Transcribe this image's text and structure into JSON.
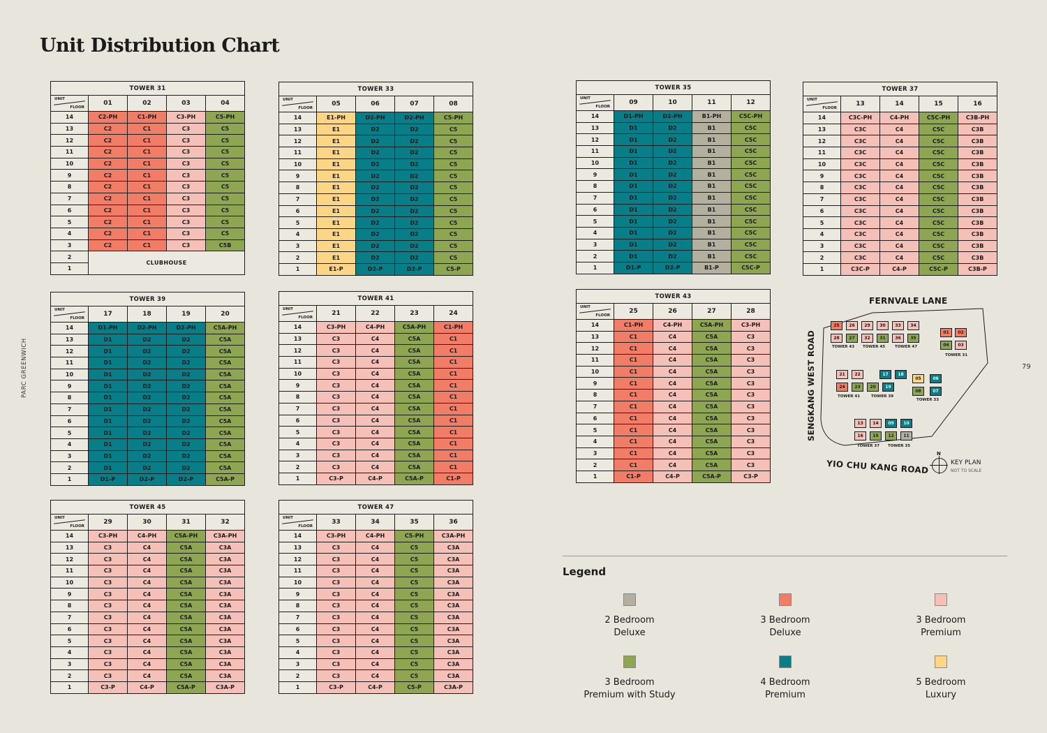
{
  "page": {
    "title": "Unit Distribution Chart",
    "side_label": "PARC GREENWICH",
    "page_number": "79"
  },
  "colors": {
    "gray": "#b3b09f",
    "coral": "#f27d67",
    "pink": "#f5c0b8",
    "green": "#8ea652",
    "teal": "#077e88",
    "yellow": "#fcd685"
  },
  "common": {
    "unit_label": "UNIT",
    "floor_label": "FLOOR",
    "clubhouse": "CLUBHOUSE"
  },
  "towers": [
    {
      "id": "t31",
      "name": "TOWER 31",
      "units": [
        "01",
        "02",
        "03",
        "04"
      ],
      "colors": [
        "coral",
        "coral",
        "pink",
        "green"
      ],
      "floors": [
        [
          "C2-PH",
          "C1-PH",
          "C3-PH",
          "C5-PH"
        ],
        [
          "C2",
          "C1",
          "C3",
          "C5"
        ],
        [
          "C2",
          "C1",
          "C3",
          "C5"
        ],
        [
          "C2",
          "C1",
          "C3",
          "C5"
        ],
        [
          "C2",
          "C1",
          "C3",
          "C5"
        ],
        [
          "C2",
          "C1",
          "C3",
          "C5"
        ],
        [
          "C2",
          "C1",
          "C3",
          "C5"
        ],
        [
          "C2",
          "C1",
          "C3",
          "C5"
        ],
        [
          "C2",
          "C1",
          "C3",
          "C5"
        ],
        [
          "C2",
          "C1",
          "C3",
          "C5"
        ],
        [
          "C2",
          "C1",
          "C3",
          "C5"
        ],
        [
          "C2",
          "C1",
          "C3",
          "C5B"
        ]
      ],
      "clubhouse": true
    },
    {
      "id": "t33",
      "name": "TOWER 33",
      "units": [
        "05",
        "06",
        "07",
        "08"
      ],
      "colors": [
        "yellow",
        "teal",
        "teal",
        "green"
      ],
      "floors": [
        [
          "E1-PH",
          "D2-PH",
          "D2-PH",
          "C5-PH"
        ],
        [
          "E1",
          "D2",
          "D2",
          "C5"
        ],
        [
          "E1",
          "D2",
          "D2",
          "C5"
        ],
        [
          "E1",
          "D2",
          "D2",
          "C5"
        ],
        [
          "E1",
          "D2",
          "D2",
          "C5"
        ],
        [
          "E1",
          "D2",
          "D2",
          "C5"
        ],
        [
          "E1",
          "D2",
          "D2",
          "C5"
        ],
        [
          "E1",
          "D2",
          "D2",
          "C5"
        ],
        [
          "E1",
          "D2",
          "D2",
          "C5"
        ],
        [
          "E1",
          "D2",
          "D2",
          "C5"
        ],
        [
          "E1",
          "D2",
          "D2",
          "C5"
        ],
        [
          "E1",
          "D2",
          "D2",
          "C5"
        ],
        [
          "E1",
          "D2",
          "D2",
          "C5"
        ],
        [
          "E1-P",
          "D2-P",
          "D2-P",
          "C5-P"
        ]
      ]
    },
    {
      "id": "t35",
      "name": "TOWER 35",
      "units": [
        "09",
        "10",
        "11",
        "12"
      ],
      "colors": [
        "teal",
        "teal",
        "gray",
        "green"
      ],
      "floors": [
        [
          "D1-PH",
          "D2-PH",
          "B1-PH",
          "C5C-PH"
        ],
        [
          "D1",
          "D2",
          "B1",
          "C5C"
        ],
        [
          "D1",
          "D2",
          "B1",
          "C5C"
        ],
        [
          "D1",
          "D2",
          "B1",
          "C5C"
        ],
        [
          "D1",
          "D2",
          "B1",
          "C5C"
        ],
        [
          "D1",
          "D2",
          "B1",
          "C5C"
        ],
        [
          "D1",
          "D2",
          "B1",
          "C5C"
        ],
        [
          "D1",
          "D2",
          "B1",
          "C5C"
        ],
        [
          "D1",
          "D2",
          "B1",
          "C5C"
        ],
        [
          "D1",
          "D2",
          "B1",
          "C5C"
        ],
        [
          "D1",
          "D2",
          "B1",
          "C5C"
        ],
        [
          "D1",
          "D2",
          "B1",
          "C5C"
        ],
        [
          "D1",
          "D2",
          "B1",
          "C5C"
        ],
        [
          "D1-P",
          "D2-P",
          "B1-P",
          "C5C-P"
        ]
      ]
    },
    {
      "id": "t37",
      "name": "TOWER 37",
      "units": [
        "13",
        "14",
        "15",
        "16"
      ],
      "colors": [
        "pink",
        "pink",
        "green",
        "pink"
      ],
      "floors": [
        [
          "C3C-PH",
          "C4-PH",
          "C5C-PH",
          "C3B-PH"
        ],
        [
          "C3C",
          "C4",
          "C5C",
          "C3B"
        ],
        [
          "C3C",
          "C4",
          "C5C",
          "C3B"
        ],
        [
          "C3C",
          "C4",
          "C5C",
          "C3B"
        ],
        [
          "C3C",
          "C4",
          "C5C",
          "C3B"
        ],
        [
          "C3C",
          "C4",
          "C5C",
          "C3B"
        ],
        [
          "C3C",
          "C4",
          "C5C",
          "C3B"
        ],
        [
          "C3C",
          "C4",
          "C5C",
          "C3B"
        ],
        [
          "C3C",
          "C4",
          "C5C",
          "C3B"
        ],
        [
          "C3C",
          "C4",
          "C5C",
          "C3B"
        ],
        [
          "C3C",
          "C4",
          "C5C",
          "C3B"
        ],
        [
          "C3C",
          "C4",
          "C5C",
          "C3B"
        ],
        [
          "C3C",
          "C4",
          "C5C",
          "C3B"
        ],
        [
          "C3C-P",
          "C4-P",
          "C5C-P",
          "C3B-P"
        ]
      ]
    },
    {
      "id": "t39",
      "name": "TOWER 39",
      "units": [
        "17",
        "18",
        "19",
        "20"
      ],
      "colors": [
        "teal",
        "teal",
        "teal",
        "green"
      ],
      "floors": [
        [
          "D1-PH",
          "D2-PH",
          "D2-PH",
          "C5A-PH"
        ],
        [
          "D1",
          "D2",
          "D2",
          "C5A"
        ],
        [
          "D1",
          "D2",
          "D2",
          "C5A"
        ],
        [
          "D1",
          "D2",
          "D2",
          "C5A"
        ],
        [
          "D1",
          "D2",
          "D2",
          "C5A"
        ],
        [
          "D1",
          "D2",
          "D2",
          "C5A"
        ],
        [
          "D1",
          "D2",
          "D2",
          "C5A"
        ],
        [
          "D1",
          "D2",
          "D2",
          "C5A"
        ],
        [
          "D1",
          "D2",
          "D2",
          "C5A"
        ],
        [
          "D1",
          "D2",
          "D2",
          "C5A"
        ],
        [
          "D1",
          "D2",
          "D2",
          "C5A"
        ],
        [
          "D1",
          "D2",
          "D2",
          "C5A"
        ],
        [
          "D1",
          "D2",
          "D2",
          "C5A"
        ],
        [
          "D1-P",
          "D2-P",
          "D2-P",
          "C5A-P"
        ]
      ]
    },
    {
      "id": "t41",
      "name": "TOWER 41",
      "units": [
        "21",
        "22",
        "23",
        "24"
      ],
      "colors": [
        "pink",
        "pink",
        "green",
        "coral"
      ],
      "floors": [
        [
          "C3-PH",
          "C4-PH",
          "C5A-PH",
          "C1-PH"
        ],
        [
          "C3",
          "C4",
          "C5A",
          "C1"
        ],
        [
          "C3",
          "C4",
          "C5A",
          "C1"
        ],
        [
          "C3",
          "C4",
          "C5A",
          "C1"
        ],
        [
          "C3",
          "C4",
          "C5A",
          "C1"
        ],
        [
          "C3",
          "C4",
          "C5A",
          "C1"
        ],
        [
          "C3",
          "C4",
          "C5A",
          "C1"
        ],
        [
          "C3",
          "C4",
          "C5A",
          "C1"
        ],
        [
          "C3",
          "C4",
          "C5A",
          "C1"
        ],
        [
          "C3",
          "C4",
          "C5A",
          "C1"
        ],
        [
          "C3",
          "C4",
          "C5A",
          "C1"
        ],
        [
          "C3",
          "C4",
          "C5A",
          "C1"
        ],
        [
          "C3",
          "C4",
          "C5A",
          "C1"
        ],
        [
          "C3-P",
          "C4-P",
          "C5A-P",
          "C1-P"
        ]
      ]
    },
    {
      "id": "t43",
      "name": "TOWER 43",
      "units": [
        "25",
        "26",
        "27",
        "28"
      ],
      "colors": [
        "coral",
        "pink",
        "green",
        "pink"
      ],
      "floors": [
        [
          "C1-PH",
          "C4-PH",
          "C5A-PH",
          "C3-PH"
        ],
        [
          "C1",
          "C4",
          "C5A",
          "C3"
        ],
        [
          "C1",
          "C4",
          "C5A",
          "C3"
        ],
        [
          "C1",
          "C4",
          "C5A",
          "C3"
        ],
        [
          "C1",
          "C4",
          "C5A",
          "C3"
        ],
        [
          "C1",
          "C4",
          "C5A",
          "C3"
        ],
        [
          "C1",
          "C4",
          "C5A",
          "C3"
        ],
        [
          "C1",
          "C4",
          "C5A",
          "C3"
        ],
        [
          "C1",
          "C4",
          "C5A",
          "C3"
        ],
        [
          "C1",
          "C4",
          "C5A",
          "C3"
        ],
        [
          "C1",
          "C4",
          "C5A",
          "C3"
        ],
        [
          "C1",
          "C4",
          "C5A",
          "C3"
        ],
        [
          "C1",
          "C4",
          "C5A",
          "C3"
        ],
        [
          "C1-P",
          "C4-P",
          "C5A-P",
          "C3-P"
        ]
      ]
    },
    {
      "id": "t45",
      "name": "TOWER 45",
      "units": [
        "29",
        "30",
        "31",
        "32"
      ],
      "colors": [
        "pink",
        "pink",
        "green",
        "pink"
      ],
      "floors": [
        [
          "C3-PH",
          "C4-PH",
          "C5A-PH",
          "C3A-PH"
        ],
        [
          "C3",
          "C4",
          "C5A",
          "C3A"
        ],
        [
          "C3",
          "C4",
          "C5A",
          "C3A"
        ],
        [
          "C3",
          "C4",
          "C5A",
          "C3A"
        ],
        [
          "C3",
          "C4",
          "C5A",
          "C3A"
        ],
        [
          "C3",
          "C4",
          "C5A",
          "C3A"
        ],
        [
          "C3",
          "C4",
          "C5A",
          "C3A"
        ],
        [
          "C3",
          "C4",
          "C5A",
          "C3A"
        ],
        [
          "C3",
          "C4",
          "C5A",
          "C3A"
        ],
        [
          "C3",
          "C4",
          "C5A",
          "C3A"
        ],
        [
          "C3",
          "C4",
          "C5A",
          "C3A"
        ],
        [
          "C3",
          "C4",
          "C5A",
          "C3A"
        ],
        [
          "C3",
          "C4",
          "C5A",
          "C3A"
        ],
        [
          "C3-P",
          "C4-P",
          "C5A-P",
          "C3A-P"
        ]
      ]
    },
    {
      "id": "t47",
      "name": "TOWER 47",
      "units": [
        "33",
        "34",
        "35",
        "36"
      ],
      "colors": [
        "pink",
        "pink",
        "green",
        "pink"
      ],
      "floors": [
        [
          "C3-PH",
          "C4-PH",
          "C5-PH",
          "C3A-PH"
        ],
        [
          "C3",
          "C4",
          "C5",
          "C3A"
        ],
        [
          "C3",
          "C4",
          "C5",
          "C3A"
        ],
        [
          "C3",
          "C4",
          "C5",
          "C3A"
        ],
        [
          "C3",
          "C4",
          "C5",
          "C3A"
        ],
        [
          "C3",
          "C4",
          "C5",
          "C3A"
        ],
        [
          "C3",
          "C4",
          "C5",
          "C3A"
        ],
        [
          "C3",
          "C4",
          "C5",
          "C3A"
        ],
        [
          "C3",
          "C4",
          "C5",
          "C3A"
        ],
        [
          "C3",
          "C4",
          "C5",
          "C3A"
        ],
        [
          "C3",
          "C4",
          "C5",
          "C3A"
        ],
        [
          "C3",
          "C4",
          "C5",
          "C3A"
        ],
        [
          "C3",
          "C4",
          "C5",
          "C3A"
        ],
        [
          "C3-P",
          "C4-P",
          "C5-P",
          "C3A-P"
        ]
      ]
    }
  ],
  "floor_numbers": [
    "14",
    "13",
    "12",
    "11",
    "10",
    "9",
    "8",
    "7",
    "6",
    "5",
    "4",
    "3",
    "2",
    "1"
  ],
  "keyplan": {
    "road_north": "FERNVALE LANE",
    "road_west": "SENGKANG WEST ROAD",
    "road_south": "YIO CHU KANG ROAD",
    "key_label": "KEY PLAN",
    "scale_note": "NOT TO SCALE",
    "north": "N",
    "tower_labels": [
      "TOWER 43",
      "TOWER 45",
      "TOWER 47",
      "TOWER 31",
      "TOWER 41",
      "TOWER 39",
      "TOWER 33",
      "TOWER 37",
      "TOWER 35"
    ],
    "blocks": [
      {
        "n": "25",
        "c": "coral"
      },
      {
        "n": "26",
        "c": "pink"
      },
      {
        "n": "29",
        "c": "pink"
      },
      {
        "n": "30",
        "c": "pink"
      },
      {
        "n": "33",
        "c": "pink"
      },
      {
        "n": "34",
        "c": "pink"
      },
      {
        "n": "28",
        "c": "pink"
      },
      {
        "n": "27",
        "c": "green"
      },
      {
        "n": "32",
        "c": "pink"
      },
      {
        "n": "31",
        "c": "green"
      },
      {
        "n": "36",
        "c": "pink"
      },
      {
        "n": "35",
        "c": "green"
      },
      {
        "n": "01",
        "c": "coral"
      },
      {
        "n": "02",
        "c": "coral"
      },
      {
        "n": "04",
        "c": "green"
      },
      {
        "n": "03",
        "c": "pink"
      },
      {
        "n": "21",
        "c": "pink"
      },
      {
        "n": "22",
        "c": "pink"
      },
      {
        "n": "17",
        "c": "teal"
      },
      {
        "n": "18",
        "c": "teal"
      },
      {
        "n": "24",
        "c": "coral"
      },
      {
        "n": "23",
        "c": "green"
      },
      {
        "n": "20",
        "c": "green"
      },
      {
        "n": "19",
        "c": "teal"
      },
      {
        "n": "05",
        "c": "yellow"
      },
      {
        "n": "06",
        "c": "teal"
      },
      {
        "n": "08",
        "c": "green"
      },
      {
        "n": "07",
        "c": "teal"
      },
      {
        "n": "13",
        "c": "pink"
      },
      {
        "n": "14",
        "c": "pink"
      },
      {
        "n": "09",
        "c": "teal"
      },
      {
        "n": "10",
        "c": "teal"
      },
      {
        "n": "16",
        "c": "pink"
      },
      {
        "n": "15",
        "c": "green"
      },
      {
        "n": "12",
        "c": "green"
      },
      {
        "n": "11",
        "c": "gray"
      }
    ]
  },
  "legend": {
    "title": "Legend",
    "items": [
      {
        "line1": "2 Bedroom",
        "line2": "Deluxe",
        "color": "gray"
      },
      {
        "line1": "3 Bedroom",
        "line2": "Deluxe",
        "color": "coral"
      },
      {
        "line1": "3 Bedroom",
        "line2": "Premium",
        "color": "pink"
      },
      {
        "line1": "3 Bedroom",
        "line2": "Premium with Study",
        "color": "green"
      },
      {
        "line1": "4 Bedroom",
        "line2": "Premium",
        "color": "teal"
      },
      {
        "line1": "5 Bedroom",
        "line2": "Luxury",
        "color": "yellow"
      }
    ]
  }
}
